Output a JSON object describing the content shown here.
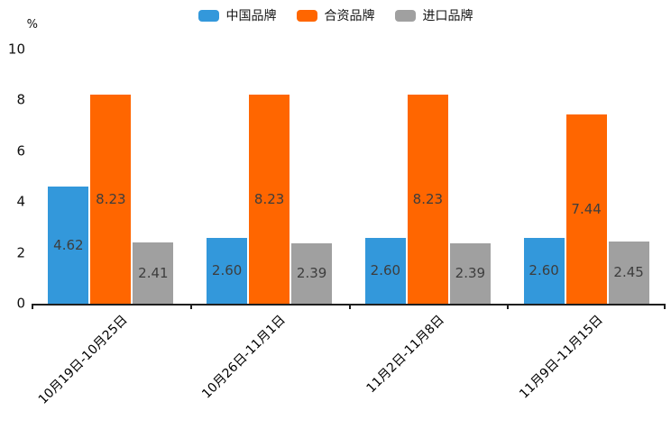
{
  "chart_data": {
    "type": "bar",
    "title": "",
    "ylabel": "%",
    "xlabel": "",
    "ylim": [
      0,
      10
    ],
    "yticks": [
      0,
      2,
      4,
      6,
      8,
      10
    ],
    "grid": false,
    "legend_position": "top-center",
    "categories": [
      "10月19日-10月25日",
      "10月26日-11月1日",
      "11月2日-11月8日",
      "11月9日-11月15日"
    ],
    "series": [
      {
        "name": "中国品牌",
        "color": "#3398DB",
        "values": [
          4.62,
          2.6,
          2.6,
          2.6
        ]
      },
      {
        "name": "合资品牌",
        "color": "#FF6600",
        "values": [
          8.23,
          8.23,
          8.23,
          7.44
        ]
      },
      {
        "name": "进口品牌",
        "color": "#A0A0A0",
        "values": [
          2.41,
          2.39,
          2.39,
          2.45
        ]
      }
    ],
    "value_label_color": "#3d3d3d",
    "axis_color": "#1f1f1f"
  }
}
